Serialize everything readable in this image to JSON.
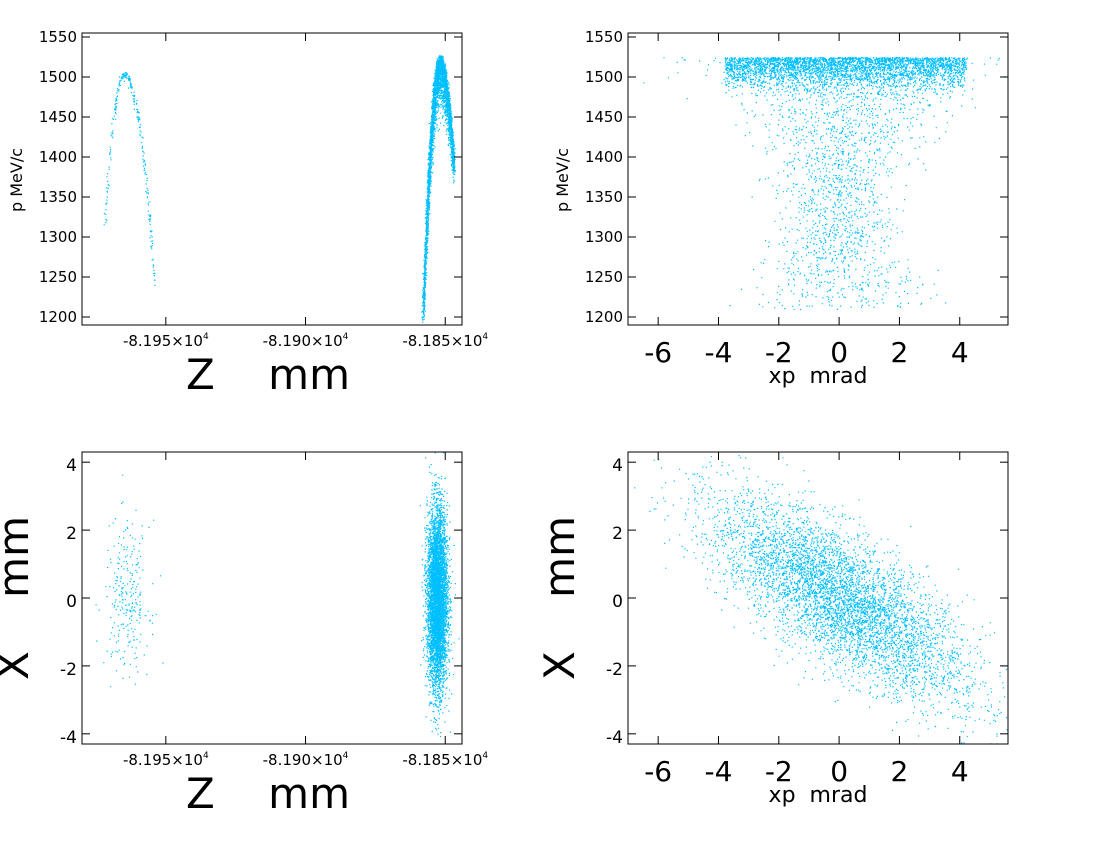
{
  "colors": {
    "points": "#00BFFF",
    "axes": "#000000",
    "background": "#FFFFFF"
  },
  "chart_data": [
    {
      "id": "z-p",
      "type": "scatter",
      "xlabel": "Z    mm",
      "ylabel": "p  MeV/c",
      "xlim": [
        -81980,
        -81844
      ],
      "ylim": [
        1190,
        1555
      ],
      "xticks": [
        {
          "value": -81950,
          "mantissa": "-8.195",
          "exp": "4"
        },
        {
          "value": -81900,
          "mantissa": "-8.190",
          "exp": "4"
        },
        {
          "value": -81850,
          "mantissa": "-8.185",
          "exp": "4"
        }
      ],
      "yticks": [
        1200,
        1250,
        1300,
        1350,
        1400,
        1450,
        1500,
        1550
      ],
      "series": [
        {
          "shape": "arc",
          "count": 260,
          "x_range": [
            -81972,
            -81954
          ],
          "y_peak": 1507,
          "x_peak": -81965,
          "y_end_left": 1318,
          "y_end_right": 1240,
          "thickness": 4
        },
        {
          "shape": "arc",
          "count": 3200,
          "x_range": [
            -81858,
            -81847
          ],
          "y_peak": 1528,
          "x_peak": -81852,
          "y_end_left": 1210,
          "y_end_right": 1395,
          "thickness": 28
        }
      ]
    },
    {
      "id": "xp-p",
      "type": "scatter",
      "xlabel": "xp  mrad",
      "ylabel": "p  MeV/c",
      "xlim": [
        -7,
        5.6
      ],
      "ylim": [
        1190,
        1555
      ],
      "xticks": [
        -6,
        -4,
        -2,
        0,
        2,
        4
      ],
      "yticks": [
        1200,
        1250,
        1300,
        1350,
        1400,
        1450,
        1500,
        1550
      ],
      "series": [
        {
          "shape": "hourglass",
          "count": 9000,
          "x_range": [
            -4.2,
            4.5
          ],
          "y_top": 1525,
          "y_min": 1210
        }
      ]
    },
    {
      "id": "z-x",
      "type": "scatter",
      "xlabel": "Z    mm",
      "ylabel": "X    mm",
      "xlim": [
        -81980,
        -81844
      ],
      "ylim": [
        -4.3,
        4.3
      ],
      "xticks": [
        {
          "value": -81950,
          "mantissa": "-8.195",
          "exp": "4"
        },
        {
          "value": -81900,
          "mantissa": "-8.190",
          "exp": "4"
        },
        {
          "value": -81850,
          "mantissa": "-8.185",
          "exp": "4"
        }
      ],
      "yticks": [
        -4,
        -2,
        0,
        2,
        4
      ],
      "series": [
        {
          "shape": "cluster",
          "count": 260,
          "x_center": -81964,
          "x_sd": 4,
          "y_center": 0,
          "y_sd": 1.1
        },
        {
          "shape": "cluster",
          "count": 6000,
          "x_center": -81853,
          "x_sd": 1.8,
          "y_center": 0,
          "y_sd": 1.3
        }
      ]
    },
    {
      "id": "xp-x",
      "type": "scatter",
      "xlabel": "xp  mrad",
      "ylabel": "X    mm",
      "xlim": [
        -7,
        5.6
      ],
      "ylim": [
        -4.3,
        4.3
      ],
      "xticks": [
        -6,
        -4,
        -2,
        0,
        2,
        4
      ],
      "yticks": [
        -4,
        -2,
        0,
        2,
        4
      ],
      "series": [
        {
          "shape": "ellipse",
          "count": 9000,
          "x_center": 0,
          "y_center": 0,
          "major_sd": 2.4,
          "minor_sd": 0.85,
          "slope": -0.62
        }
      ]
    }
  ]
}
